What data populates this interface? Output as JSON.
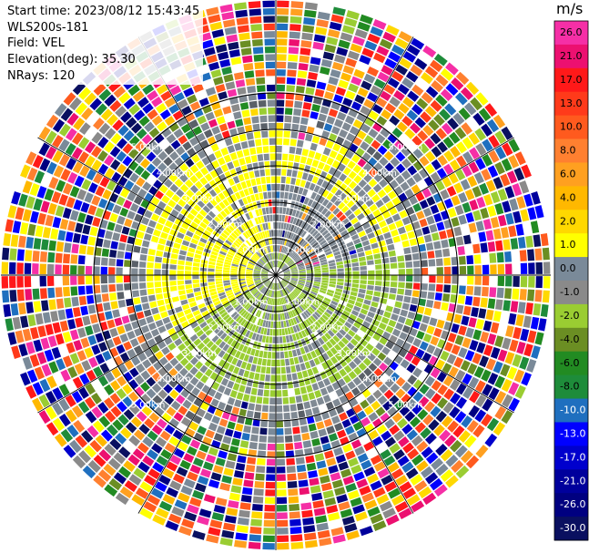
{
  "header": {
    "start_time": "Start time: 2023/08/12 15:43:45",
    "instrument": "WLS200s-181",
    "field": "Field: VEL",
    "elevation": "Elevation(deg): 35.30",
    "nrays": "NRays: 120"
  },
  "range_rings": {
    "ring_labels_km": [
      "1.00km",
      "2.00km",
      "3.00km",
      "4.00km",
      "5.00km"
    ]
  },
  "colorbar": {
    "unit": "m/s",
    "ticks": [
      "26.0",
      "21.0",
      "17.0",
      "13.0",
      "10.0",
      "8.0",
      "6.0",
      "4.0",
      "2.0",
      "1.0",
      "0.0",
      "-1.0",
      "-2.0",
      "-4.0",
      "-6.0",
      "-8.0",
      "-10.0",
      "-13.0",
      "-17.0",
      "-21.0",
      "-26.0",
      "-30.0"
    ],
    "colors": [
      "#f52fa6",
      "#ec1070",
      "#ff1919",
      "#ff3a1a",
      "#ff5a1e",
      "#ff8030",
      "#ffa020",
      "#ffb800",
      "#ffd800",
      "#ffff00",
      "#7a8a99",
      "#8a8a8a",
      "#9acd32",
      "#6b8e23",
      "#228b22",
      "#1e8c3a",
      "#1f6fbf",
      "#0000ff",
      "#0000cd",
      "#00009c",
      "#000080",
      "#0a1060"
    ]
  },
  "field_pattern": {
    "yellow_color": "#ffff00",
    "green_color": "#9acd32",
    "gray_color": "#808a94",
    "dark_gray_color": "#5a6068"
  }
}
